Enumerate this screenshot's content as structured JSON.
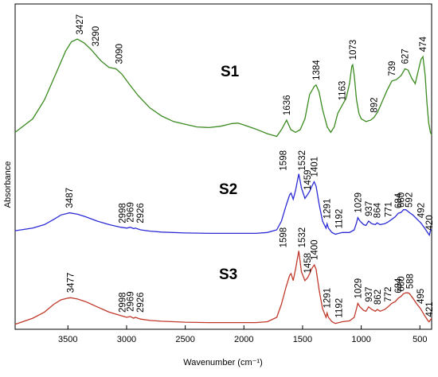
{
  "chart_data": {
    "type": "line",
    "xlabel": "Wavenumber (cm⁻¹)",
    "ylabel": "Absorbance",
    "xlim": [
      3950,
      400
    ],
    "x_reversed": true,
    "xticks": [
      3500,
      3000,
      2500,
      2000,
      1500,
      1000,
      500
    ],
    "yticks_shown": false,
    "grid": false,
    "series": [
      {
        "name": "S1",
        "color": "#3a8a1f",
        "points": [
          [
            3950,
            8
          ],
          [
            3800,
            18
          ],
          [
            3700,
            32
          ],
          [
            3600,
            52
          ],
          [
            3520,
            68
          ],
          [
            3470,
            75
          ],
          [
            3420,
            77
          ],
          [
            3360,
            74
          ],
          [
            3300,
            69
          ],
          [
            3220,
            61
          ],
          [
            3150,
            56
          ],
          [
            3090,
            55
          ],
          [
            3040,
            51
          ],
          [
            2980,
            44
          ],
          [
            2900,
            35
          ],
          [
            2800,
            26
          ],
          [
            2700,
            20
          ],
          [
            2600,
            16
          ],
          [
            2500,
            14
          ],
          [
            2400,
            12
          ],
          [
            2300,
            11.5
          ],
          [
            2200,
            12.5
          ],
          [
            2100,
            14.5
          ],
          [
            2050,
            14.8
          ],
          [
            2000,
            13.5
          ],
          [
            1900,
            10.5
          ],
          [
            1800,
            7
          ],
          [
            1720,
            5
          ],
          [
            1680,
            10
          ],
          [
            1636,
            17
          ],
          [
            1600,
            10
          ],
          [
            1560,
            8
          ],
          [
            1520,
            10
          ],
          [
            1480,
            18
          ],
          [
            1440,
            36
          ],
          [
            1400,
            42
          ],
          [
            1384,
            43
          ],
          [
            1360,
            38
          ],
          [
            1330,
            25
          ],
          [
            1290,
            12
          ],
          [
            1260,
            8
          ],
          [
            1230,
            12
          ],
          [
            1200,
            22
          ],
          [
            1163,
            28
          ],
          [
            1130,
            33
          ],
          [
            1100,
            44
          ],
          [
            1080,
            57
          ],
          [
            1073,
            58
          ],
          [
            1060,
            50
          ],
          [
            1040,
            32
          ],
          [
            1020,
            22
          ],
          [
            1000,
            18
          ],
          [
            960,
            16
          ],
          [
            920,
            17
          ],
          [
            892,
            19
          ],
          [
            860,
            23
          ],
          [
            820,
            31
          ],
          [
            780,
            39
          ],
          [
            739,
            46
          ],
          [
            700,
            47
          ],
          [
            660,
            50
          ],
          [
            627,
            55
          ],
          [
            600,
            54
          ],
          [
            570,
            48
          ],
          [
            540,
            44
          ],
          [
            510,
            55
          ],
          [
            490,
            62
          ],
          [
            474,
            64
          ],
          [
            455,
            50
          ],
          [
            440,
            30
          ],
          [
            425,
            15
          ],
          [
            410,
            8
          ],
          [
            400,
            6
          ]
        ]
      },
      {
        "name": "S2",
        "color": "#2b2bd6",
        "points": [
          [
            3950,
            9
          ],
          [
            3800,
            12
          ],
          [
            3700,
            16
          ],
          [
            3620,
            22
          ],
          [
            3560,
            27
          ],
          [
            3500,
            29
          ],
          [
            3487,
            29.5
          ],
          [
            3420,
            28
          ],
          [
            3350,
            25
          ],
          [
            3250,
            20
          ],
          [
            3150,
            16
          ],
          [
            3050,
            13
          ],
          [
            2998,
            12
          ],
          [
            2969,
            13
          ],
          [
            2940,
            11.5
          ],
          [
            2926,
            12
          ],
          [
            2880,
            10
          ],
          [
            2800,
            8.5
          ],
          [
            2700,
            7.5
          ],
          [
            2500,
            6.5
          ],
          [
            2300,
            6
          ],
          [
            2100,
            6
          ],
          [
            1900,
            6
          ],
          [
            1800,
            7
          ],
          [
            1720,
            10
          ],
          [
            1680,
            20
          ],
          [
            1640,
            38
          ],
          [
            1610,
            50
          ],
          [
            1598,
            52
          ],
          [
            1580,
            45
          ],
          [
            1560,
            55
          ],
          [
            1532,
            74
          ],
          [
            1510,
            58
          ],
          [
            1480,
            46
          ],
          [
            1459,
            50
          ],
          [
            1440,
            54
          ],
          [
            1420,
            60
          ],
          [
            1401,
            65
          ],
          [
            1385,
            60
          ],
          [
            1360,
            40
          ],
          [
            1330,
            20
          ],
          [
            1300,
            12
          ],
          [
            1291,
            17
          ],
          [
            1280,
            12
          ],
          [
            1250,
            7
          ],
          [
            1220,
            5
          ],
          [
            1192,
            6
          ],
          [
            1160,
            7
          ],
          [
            1100,
            7
          ],
          [
            1060,
            10
          ],
          [
            1040,
            18
          ],
          [
            1029,
            24
          ],
          [
            1010,
            20
          ],
          [
            980,
            16
          ],
          [
            960,
            15
          ],
          [
            937,
            20
          ],
          [
            910,
            17
          ],
          [
            880,
            16
          ],
          [
            864,
            18
          ],
          [
            840,
            16
          ],
          [
            800,
            17
          ],
          [
            771,
            19
          ],
          [
            740,
            22
          ],
          [
            710,
            25
          ],
          [
            684,
            29
          ],
          [
            660,
            30
          ],
          [
            640,
            33
          ],
          [
            620,
            33
          ],
          [
            600,
            31
          ],
          [
            592,
            30
          ],
          [
            560,
            27
          ],
          [
            530,
            23
          ],
          [
            492,
            18
          ],
          [
            460,
            12
          ],
          [
            430,
            6
          ],
          [
            420,
            4
          ],
          [
            410,
            9
          ],
          [
            400,
            11
          ]
        ]
      },
      {
        "name": "S3",
        "color": "#c0392b",
        "points": [
          [
            3950,
            2
          ],
          [
            3800,
            9
          ],
          [
            3700,
            16
          ],
          [
            3620,
            25
          ],
          [
            3560,
            30
          ],
          [
            3500,
            32
          ],
          [
            3477,
            32.5
          ],
          [
            3420,
            31
          ],
          [
            3350,
            28
          ],
          [
            3250,
            22
          ],
          [
            3150,
            16
          ],
          [
            3050,
            12
          ],
          [
            2998,
            10
          ],
          [
            2969,
            11
          ],
          [
            2940,
            9
          ],
          [
            2926,
            10
          ],
          [
            2880,
            8
          ],
          [
            2800,
            6.5
          ],
          [
            2700,
            5.5
          ],
          [
            2500,
            4.5
          ],
          [
            2300,
            4
          ],
          [
            2100,
            4
          ],
          [
            1900,
            4
          ],
          [
            1800,
            5
          ],
          [
            1720,
            10
          ],
          [
            1680,
            25
          ],
          [
            1640,
            45
          ],
          [
            1610,
            58
          ],
          [
            1598,
            60
          ],
          [
            1580,
            52
          ],
          [
            1560,
            65
          ],
          [
            1532,
            86
          ],
          [
            1510,
            62
          ],
          [
            1480,
            52
          ],
          [
            1458,
            55
          ],
          [
            1440,
            60
          ],
          [
            1420,
            66
          ],
          [
            1400,
            70
          ],
          [
            1385,
            65
          ],
          [
            1360,
            42
          ],
          [
            1330,
            20
          ],
          [
            1300,
            10
          ],
          [
            1291,
            15
          ],
          [
            1280,
            10
          ],
          [
            1250,
            5
          ],
          [
            1220,
            3
          ],
          [
            1192,
            4
          ],
          [
            1160,
            5
          ],
          [
            1100,
            6
          ],
          [
            1060,
            10
          ],
          [
            1040,
            20
          ],
          [
            1029,
            26
          ],
          [
            1010,
            22
          ],
          [
            980,
            18
          ],
          [
            960,
            17
          ],
          [
            937,
            22
          ],
          [
            910,
            19
          ],
          [
            880,
            17
          ],
          [
            862,
            19
          ],
          [
            840,
            17
          ],
          [
            800,
            19
          ],
          [
            772,
            22
          ],
          [
            740,
            26
          ],
          [
            710,
            28
          ],
          [
            684,
            32
          ],
          [
            660,
            34
          ],
          [
            640,
            37
          ],
          [
            620,
            38
          ],
          [
            600,
            38
          ],
          [
            588,
            37
          ],
          [
            560,
            32
          ],
          [
            530,
            26
          ],
          [
            495,
            20
          ],
          [
            460,
            12
          ],
          [
            430,
            6
          ],
          [
            421,
            5
          ],
          [
            410,
            7
          ],
          [
            400,
            9
          ]
        ]
      }
    ],
    "peak_labels": {
      "S1": [
        "3427",
        "3290",
        "3090",
        "1636",
        "1384",
        "1163",
        "1073",
        "892",
        "739",
        "627",
        "474"
      ],
      "S2": [
        "3487",
        "2998",
        "2969",
        "2926",
        "1598",
        "1532",
        "1459",
        "1401",
        "1291",
        "1192",
        "1029",
        "937",
        "864",
        "771",
        "684",
        "660",
        "592",
        "492",
        "420"
      ],
      "S3": [
        "3477",
        "2998",
        "2969",
        "2926",
        "1598",
        "1532",
        "1458",
        "1400",
        "1291",
        "1192",
        "1029",
        "937",
        "862",
        "772",
        "684",
        "660",
        "588",
        "495",
        "421"
      ]
    }
  }
}
